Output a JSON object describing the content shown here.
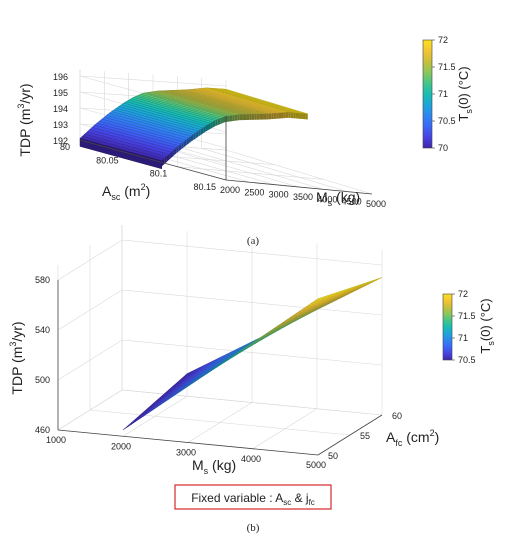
{
  "chart_data": [
    {
      "type": "surface",
      "panel_label": "(a)",
      "zlabel": {
        "text": "TDP (m",
        "sup": "3",
        "tail": "/yr)"
      },
      "xlabel": {
        "text": "A",
        "sub": "sc",
        "tail": " (m",
        "sup": "2",
        "tail2": ")"
      },
      "ylabel": {
        "text": "M",
        "sub": "s",
        "tail": " (kg)"
      },
      "z_ticks": [
        "192",
        "193",
        "194",
        "195",
        "196"
      ],
      "x_ticks": [
        "80",
        "80.05",
        "80.1",
        "80.15"
      ],
      "y_ticks": [
        "2000",
        "2500",
        "3000",
        "3500",
        "4000",
        "4500",
        "5000"
      ],
      "xlim": [
        80,
        80.15
      ],
      "ylim": [
        2000,
        5000
      ],
      "zlim": [
        192,
        196
      ],
      "colorbar": {
        "label": "T",
        "sub": "s",
        "tail": "(0) (°C)",
        "ticks": [
          "70",
          "70.5",
          "71",
          "71.5",
          "72"
        ],
        "range": [
          70,
          72
        ]
      },
      "surface_profile": {
        "x": [
          2000,
          2300,
          2600,
          2900,
          3100,
          3300,
          3600,
          3900,
          4200,
          4400,
          4600,
          4800,
          5000
        ],
        "z": [
          192.1,
          193.0,
          193.8,
          194.5,
          194.9,
          195.2,
          195.4,
          195.5,
          195.6,
          195.7,
          195.8,
          195.8,
          195.8
        ],
        "color_value": [
          70.0,
          70.3,
          70.6,
          70.9,
          71.1,
          71.3,
          71.5,
          71.6,
          71.7,
          71.8,
          71.9,
          72.0,
          72.0
        ]
      }
    },
    {
      "type": "surface",
      "panel_label": "(b)",
      "zlabel": {
        "text": "TDP (m",
        "sup": "3",
        "tail": "/yr)"
      },
      "xlabel": {
        "text": "M",
        "sub": "s",
        "tail": " (kg)"
      },
      "ylabel": {
        "text": "A",
        "sub": "fc",
        "tail": " (cm",
        "sup": "2",
        "tail2": ")"
      },
      "z_ticks": [
        "460",
        "500",
        "540",
        "580"
      ],
      "x_ticks": [
        "1000",
        "2000",
        "3000",
        "4000",
        "5000"
      ],
      "y_ticks": [
        "50",
        "55",
        "60"
      ],
      "xlim": [
        1000,
        5000
      ],
      "ylim": [
        50,
        60
      ],
      "zlim": [
        460,
        580
      ],
      "colorbar": {
        "label": "T",
        "sub": "s",
        "tail": "(0) (°C)",
        "ticks": [
          "70.5",
          "71",
          "71.5",
          "72"
        ],
        "range": [
          70.5,
          72
        ]
      },
      "surface_profile": {
        "x": [
          2000,
          5000
        ],
        "z_low_afc": [
          465,
          585
        ],
        "z_high_afc": [
          478,
          570
        ],
        "color_value_low_afc": [
          70.5,
          72.0
        ],
        "color_value_high_afc": [
          70.6,
          72.0
        ]
      }
    }
  ],
  "fixed_variable": {
    "text": "Fixed variable : A",
    "sub1": "sc",
    "mid": " & j",
    "sub2": "fc"
  },
  "colormap": [
    "#3e26a8",
    "#4743e3",
    "#3a67f5",
    "#2e87f0",
    "#1ca6d9",
    "#17bdb2",
    "#45c687",
    "#8bc75b",
    "#c8bf3c",
    "#f4c534",
    "#f9e11d"
  ]
}
